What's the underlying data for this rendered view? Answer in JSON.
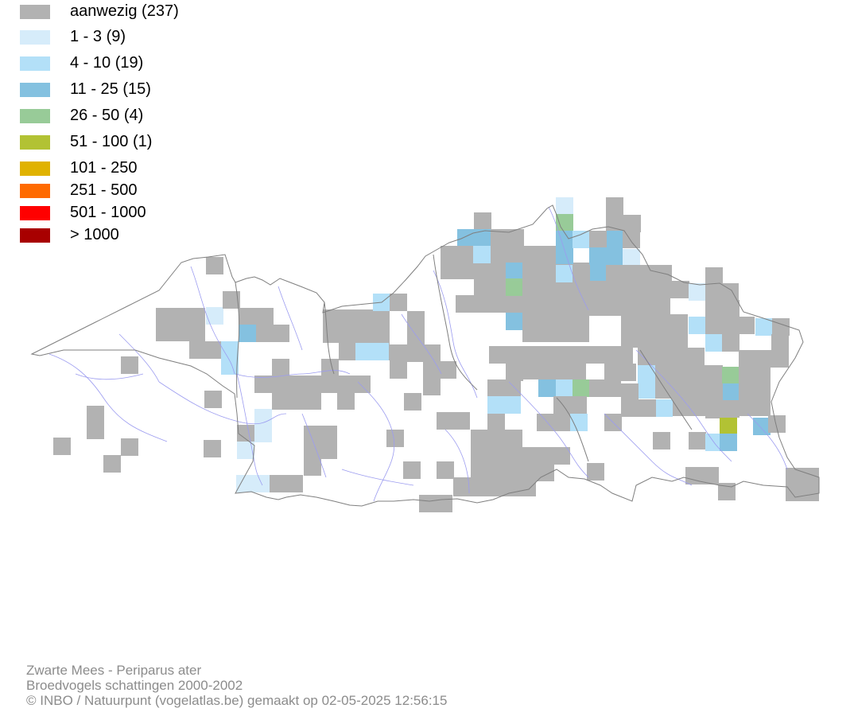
{
  "legend": [
    {
      "label": "aanwezig (237)",
      "color": "#b2b2b2"
    },
    {
      "label": "1 - 3 (9)",
      "color": "#d6ecfa"
    },
    {
      "label": "4 - 10 (19)",
      "color": "#b3e0f8"
    },
    {
      "label": "11 - 25 (15)",
      "color": "#84c1e0"
    },
    {
      "label": "26 - 50 (4)",
      "color": "#98cb98"
    },
    {
      "label": "51 - 100 (1)",
      "color": "#b2c234"
    },
    {
      "label": "101 - 250",
      "color": "#e0b200"
    },
    {
      "label": "251 - 500",
      "color": "#ff6a00"
    },
    {
      "label": "501 - 1000",
      "color": "#ff0000"
    },
    {
      "label": "> 1000",
      "color": "#a80000"
    }
  ],
  "credits": {
    "species": "Zwarte Mees - Periparus ater",
    "dataset": "Broedvogels schattingen 2000-2002",
    "copyright": "© INBO / Natuurpunt (vogelatlas.be) gemaakt op 02-05-2025 12:56:15"
  },
  "map": {
    "border_color": "#7f7f7f",
    "river_color": "#9c9cf0"
  }
}
